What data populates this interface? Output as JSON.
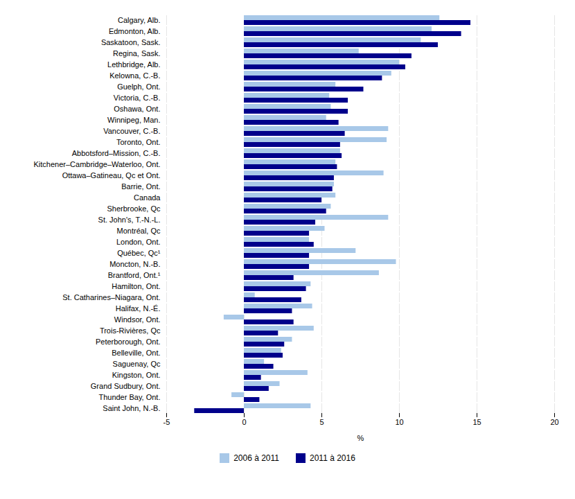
{
  "chart_data": {
    "type": "bar",
    "orientation": "horizontal",
    "categories": [
      "Calgary, Alb.",
      "Edmonton, Alb.",
      "Saskatoon, Sask.",
      "Regina, Sask.",
      "Lethbridge, Alb.",
      "Kelowna, C.-B.",
      "Guelph, Ont.",
      "Victoria, C.-B.",
      "Oshawa, Ont.",
      "Winnipeg, Man.",
      "Vancouver, C.-B.",
      "Toronto, Ont.",
      "Abbotsford–Mission, C.-B.",
      "Kitchener–Cambridge–Waterloo, Ont.",
      "Ottawa–Gatineau, Qc et Ont.",
      "Barrie, Ont.",
      "Canada",
      "Sherbrooke, Qc",
      "St. John's, T.-N.-L.",
      "Montréal, Qc",
      "London, Ont.",
      "Québec, Qc¹",
      "Moncton, N.-B.",
      "Brantford, Ont.¹",
      "Hamilton, Ont.",
      "St. Catharines–Niagara, Ont.",
      "Halifax, N.-É.",
      "Windsor, Ont.",
      "Trois-Rivières, Qc",
      "Peterborough, Ont.",
      "Belleville, Ont.",
      "Saguenay, Qc",
      "Kingston, Ont.",
      "Grand Sudbury, Ont.",
      "Thunder Bay, Ont.",
      "Saint John, N.-B."
    ],
    "series": [
      {
        "name": "2006 à 2011",
        "color": "#a8c8e8",
        "values": [
          12.6,
          12.1,
          11.4,
          7.4,
          10.0,
          9.5,
          5.9,
          5.5,
          5.6,
          5.3,
          9.3,
          9.2,
          6.2,
          5.9,
          9.0,
          5.8,
          5.9,
          5.6,
          9.3,
          5.2,
          4.2,
          7.2,
          9.8,
          8.7,
          4.3,
          0.7,
          4.4,
          -1.3,
          4.5,
          3.1,
          2.4,
          1.3,
          4.1,
          2.3,
          -0.8,
          4.3
        ]
      },
      {
        "name": "2011 à 2016",
        "color": "#00008b",
        "values": [
          14.6,
          14.0,
          12.5,
          10.8,
          10.4,
          8.9,
          7.7,
          6.7,
          6.7,
          6.1,
          6.5,
          6.2,
          6.3,
          6.0,
          5.8,
          5.7,
          5.0,
          5.3,
          4.6,
          4.2,
          4.5,
          4.2,
          4.2,
          3.2,
          4.0,
          3.7,
          3.1,
          3.2,
          2.2,
          2.6,
          2.5,
          1.9,
          1.1,
          1.6,
          1.0,
          -3.2
        ]
      }
    ],
    "xlabel": "%",
    "xlim": [
      -5,
      20
    ],
    "xticks": [
      -5,
      0,
      5,
      10,
      15,
      20
    ],
    "grid": true,
    "legend": "bottom"
  }
}
